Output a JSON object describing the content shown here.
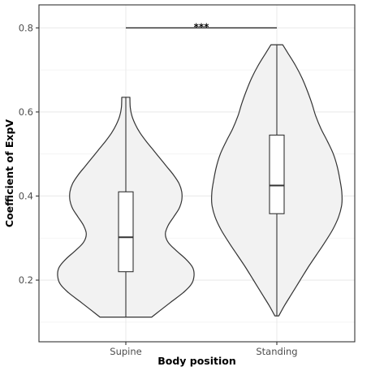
{
  "chart_data": {
    "type": "violin",
    "title": "",
    "xlabel": "Body position",
    "ylabel": "Coefficient of ExpV",
    "categories": [
      "Supine",
      "Standing"
    ],
    "ylim": [
      0.09,
      0.82
    ],
    "yticks": [
      0.2,
      0.4,
      0.6,
      0.8
    ],
    "ytick_labels": [
      "0.2",
      "0.4",
      "0.6",
      "0.8"
    ],
    "grid": true,
    "legend": "none",
    "colors": {
      "fill": "#f2f2f2",
      "stroke": "#333333",
      "box_fill": "#ffffff",
      "grid": "#ebebeb",
      "panel_border": "#333333"
    },
    "groups": [
      {
        "name": "Supine",
        "box": {
          "q1": 0.22,
          "median": 0.302,
          "q3": 0.41,
          "whisker_low": 0.112,
          "whisker_high": 0.635
        },
        "density": [
          [
            0.112,
            0.38
          ],
          [
            0.13,
            0.52
          ],
          [
            0.15,
            0.68
          ],
          [
            0.17,
            0.84
          ],
          [
            0.19,
            0.96
          ],
          [
            0.21,
            1.0
          ],
          [
            0.23,
            0.98
          ],
          [
            0.25,
            0.88
          ],
          [
            0.27,
            0.74
          ],
          [
            0.29,
            0.62
          ],
          [
            0.31,
            0.58
          ],
          [
            0.33,
            0.62
          ],
          [
            0.35,
            0.7
          ],
          [
            0.37,
            0.78
          ],
          [
            0.39,
            0.82
          ],
          [
            0.41,
            0.82
          ],
          [
            0.43,
            0.78
          ],
          [
            0.45,
            0.7
          ],
          [
            0.47,
            0.6
          ],
          [
            0.49,
            0.5
          ],
          [
            0.51,
            0.4
          ],
          [
            0.53,
            0.3
          ],
          [
            0.55,
            0.21
          ],
          [
            0.57,
            0.14
          ],
          [
            0.59,
            0.09
          ],
          [
            0.61,
            0.065
          ],
          [
            0.635,
            0.06
          ]
        ]
      },
      {
        "name": "Standing",
        "box": {
          "q1": 0.358,
          "median": 0.425,
          "q3": 0.545,
          "whisker_low": 0.115,
          "whisker_high": 0.76
        },
        "density": [
          [
            0.115,
            0.03
          ],
          [
            0.14,
            0.12
          ],
          [
            0.17,
            0.24
          ],
          [
            0.2,
            0.36
          ],
          [
            0.23,
            0.48
          ],
          [
            0.26,
            0.61
          ],
          [
            0.29,
            0.74
          ],
          [
            0.32,
            0.86
          ],
          [
            0.35,
            0.95
          ],
          [
            0.38,
            1.0
          ],
          [
            0.41,
            1.0
          ],
          [
            0.44,
            0.97
          ],
          [
            0.47,
            0.93
          ],
          [
            0.5,
            0.87
          ],
          [
            0.53,
            0.78
          ],
          [
            0.56,
            0.68
          ],
          [
            0.59,
            0.6
          ],
          [
            0.62,
            0.54
          ],
          [
            0.65,
            0.47
          ],
          [
            0.68,
            0.39
          ],
          [
            0.71,
            0.29
          ],
          [
            0.74,
            0.17
          ],
          [
            0.76,
            0.09
          ]
        ]
      }
    ],
    "annotations": [
      {
        "text": "***",
        "from": "Supine",
        "to": "Standing",
        "y": 0.8
      }
    ]
  }
}
